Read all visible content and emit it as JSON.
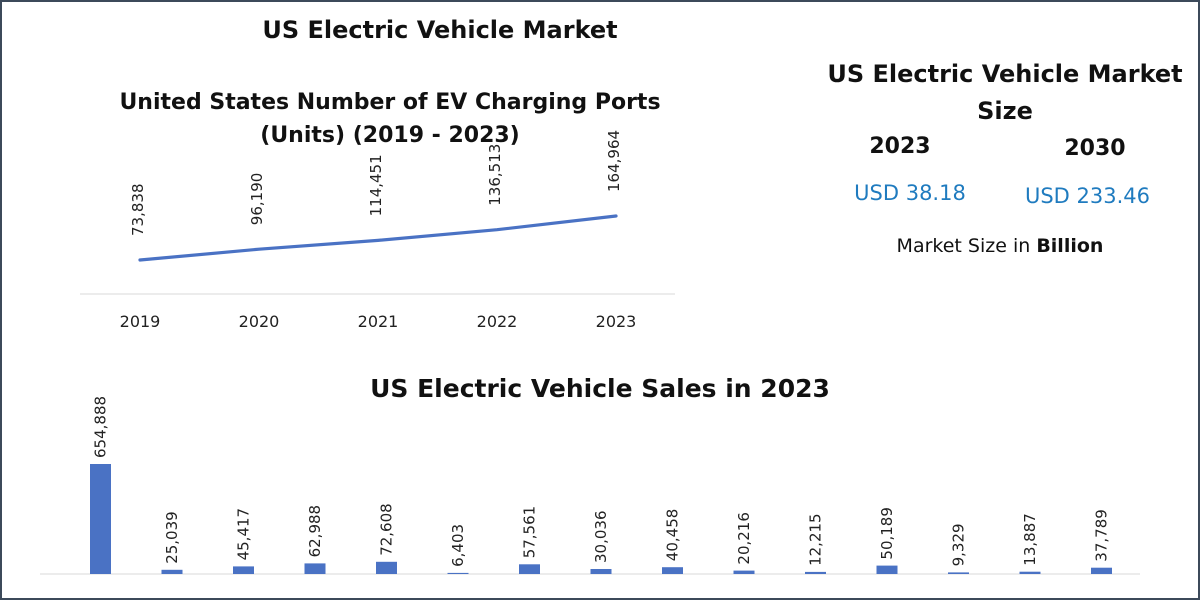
{
  "colors": {
    "series": "#4a72c4",
    "accent": "#1f7bbf",
    "border": "#3c4a5a"
  },
  "header": {
    "title": "US Electric Vehicle Market"
  },
  "market_panel": {
    "title": "US Electric Vehicle Market Size",
    "year_a": "2023",
    "year_b": "2030",
    "value_a": "USD 38.18",
    "value_b": "USD 233.46",
    "unit_prefix": "Market Size in",
    "unit_bold": "Billion"
  },
  "chart_data": [
    {
      "type": "line",
      "title": "United States Number of EV Charging Ports (Units) (2019 - 2023)",
      "categories": [
        "2019",
        "2020",
        "2021",
        "2022",
        "2023"
      ],
      "values": [
        73838,
        96190,
        114451,
        136513,
        164964
      ],
      "labels": [
        "73,838",
        "96,190",
        "114,451",
        "136,513",
        "164,964"
      ],
      "xlabel": "",
      "ylabel": "",
      "grid": false,
      "legend": "none"
    },
    {
      "type": "bar",
      "title": "US Electric Vehicle Sales in 2023",
      "categories": [
        "",
        "",
        "",
        "",
        "",
        "",
        "",
        "",
        "",
        "",
        "",
        "",
        "",
        "",
        ""
      ],
      "values": [
        654888,
        25039,
        45417,
        62988,
        72608,
        6403,
        57561,
        30036,
        40458,
        20216,
        12215,
        50189,
        9329,
        13887,
        37789
      ],
      "labels": [
        "654,888",
        "25,039",
        "45,417",
        "62,988",
        "72,608",
        "6,403",
        "57,561",
        "30,036",
        "40,458",
        "20,216",
        "12,215",
        "50,189",
        "9,329",
        "13,887",
        "37,789"
      ],
      "xlabel": "",
      "ylabel": "",
      "grid": false,
      "legend": "none"
    }
  ]
}
